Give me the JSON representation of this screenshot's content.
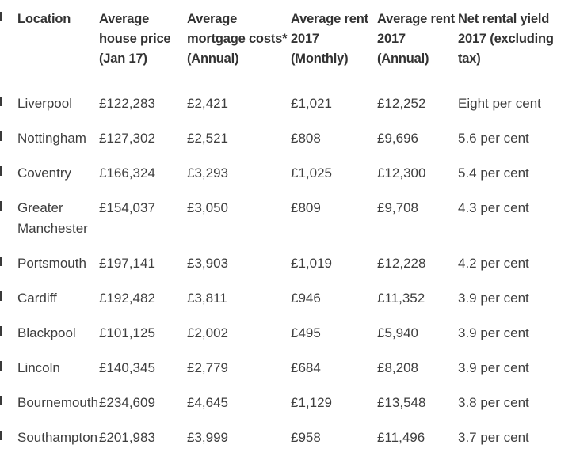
{
  "chart_data": {
    "type": "table",
    "title": "",
    "columns": [
      "Location",
      "Average house price (Jan 17)",
      "Average mortgage costs* (Annual)",
      "Average rent 2017 (Monthly)",
      "Average rent 2017 (Annual)",
      "Net rental yield 2017 (excluding tax)"
    ],
    "rows": [
      [
        "Liverpool",
        "£122,283",
        "£2,421",
        "£1,021",
        "£12,252",
        "Eight per cent"
      ],
      [
        "Nottingham",
        "£127,302",
        "£2,521",
        "£808",
        "£9,696",
        "5.6 per cent"
      ],
      [
        "Coventry",
        "£166,324",
        "£3,293",
        "£1,025",
        "£12,300",
        "5.4 per cent"
      ],
      [
        "Greater Manchester",
        "£154,037",
        "£3,050",
        "£809",
        "£9,708",
        "4.3 per cent"
      ],
      [
        "Portsmouth",
        "£197,141",
        "£3,903",
        "£1,019",
        "£12,228",
        "4.2 per cent"
      ],
      [
        "Cardiff",
        "£192,482",
        "£3,811",
        "£946",
        "£11,352",
        "3.9 per cent"
      ],
      [
        "Blackpool",
        "£101,125",
        "£2,002",
        "£495",
        "£5,940",
        "3.9 per cent"
      ],
      [
        "Lincoln",
        "£140,345",
        "£2,779",
        "£684",
        "£8,208",
        "3.9 per cent"
      ],
      [
        "Bournemouth",
        "£234,609",
        "£4,645",
        "£1,129",
        "£13,548",
        "3.8 per cent"
      ],
      [
        "Southampton",
        "£201,983",
        "£3,999",
        "£958",
        "£11,496",
        "3.7 per cent"
      ]
    ]
  },
  "table": {
    "header_display": [
      "Location",
      "Average\nhouse price\n(Jan 17)",
      "Average\nmortgage costs*\n(Annual)",
      "Average rent\n2017\n(Monthly)",
      "Average rent\n2017\n(Annual)",
      "Net rental yield\n2017 (excluding\ntax)"
    ]
  },
  "colors": {
    "background": "#ffffff",
    "header_text": "#333333",
    "body_text": "#3e3e3e"
  }
}
